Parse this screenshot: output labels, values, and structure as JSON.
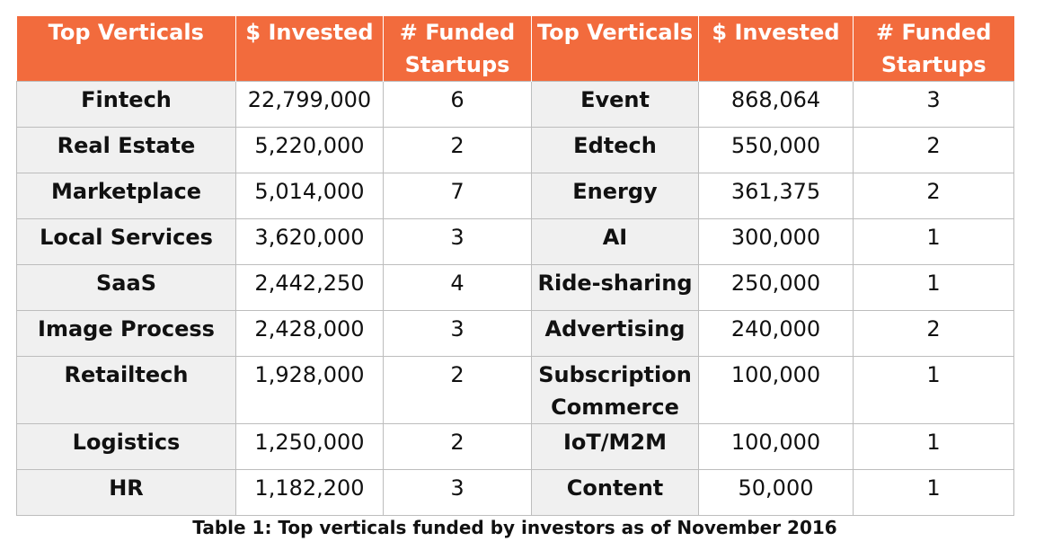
{
  "table": {
    "headers": [
      "Top Verticals",
      "$ Invested",
      "# Funded Startups",
      "Top Verticals",
      "$ Invested",
      "# Funded Startups"
    ],
    "rows": [
      {
        "left": [
          "Fintech",
          "22,799,000",
          "6"
        ],
        "right": [
          "Event",
          "868,064",
          "3"
        ]
      },
      {
        "left": [
          "Real Estate",
          "5,220,000",
          "2"
        ],
        "right": [
          "Edtech",
          "550,000",
          "2"
        ]
      },
      {
        "left": [
          "Marketplace",
          "5,014,000",
          "7"
        ],
        "right": [
          "Energy",
          "361,375",
          "2"
        ]
      },
      {
        "left": [
          "Local Services",
          "3,620,000",
          "3"
        ],
        "right": [
          "AI",
          "300,000",
          "1"
        ]
      },
      {
        "left": [
          "SaaS",
          "2,442,250",
          "4"
        ],
        "right": [
          "Ride-sharing",
          "250,000",
          "1"
        ]
      },
      {
        "left": [
          "Image Process",
          "2,428,000",
          "3"
        ],
        "right": [
          "Advertising",
          "240,000",
          "2"
        ]
      },
      {
        "left": [
          "Retailtech",
          "1,928,000",
          "2"
        ],
        "right": [
          "Subscription Commerce",
          "100,000",
          "1"
        ]
      },
      {
        "left": [
          "Logistics",
          "1,250,000",
          "2"
        ],
        "right": [
          "IoT/M2M",
          "100,000",
          "1"
        ]
      },
      {
        "left": [
          "HR",
          "1,182,200",
          "3"
        ],
        "right": [
          "Content",
          "50,000",
          "1"
        ]
      }
    ]
  },
  "caption": "Table 1: Top verticals funded by investors as of November 2016",
  "colors": {
    "header_bg": "#f26b3d",
    "header_text": "#ffffff",
    "category_bg": "#f0f0f0",
    "grid": "#bdbdbd"
  }
}
